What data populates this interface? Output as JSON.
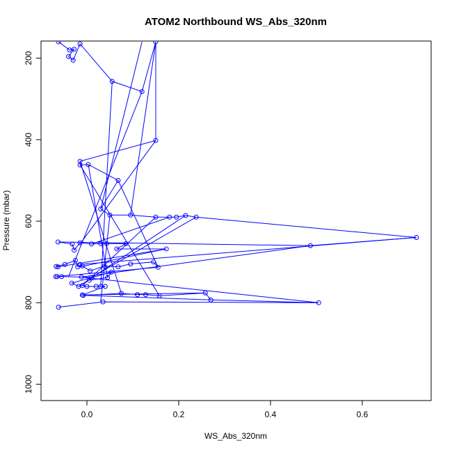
{
  "chart_data": {
    "type": "scatter",
    "title": "ATOM2 Northbound WS_Abs_320nm",
    "xlabel": "WS_Abs_320nm",
    "ylabel": "Pressure (mbar)",
    "xlim": [
      -0.1,
      0.75
    ],
    "ylim": [
      1040,
      158
    ],
    "y_reversed": true,
    "x_ticks": [
      0.0,
      0.2,
      0.4,
      0.6
    ],
    "x_tick_labels": [
      "0.0",
      "0.2",
      "0.4",
      "0.6"
    ],
    "y_ticks": [
      200,
      400,
      600,
      800,
      1000
    ],
    "y_tick_labels": [
      "200",
      "400",
      "600",
      "800",
      "1000"
    ],
    "grid": false,
    "legend": "none",
    "series_color": "#0000ff",
    "marker": "open-circle",
    "points": [
      {
        "x": -0.062,
        "y": 160
      },
      {
        "x": -0.038,
        "y": 180
      },
      {
        "x": -0.028,
        "y": 178
      },
      {
        "x": -0.04,
        "y": 196
      },
      {
        "x": -0.03,
        "y": 205
      },
      {
        "x": -0.015,
        "y": 165
      },
      {
        "x": 0.055,
        "y": 257
      },
      {
        "x": 0.12,
        "y": 282
      },
      {
        "x": 0.15,
        "y": 160
      },
      {
        "x": 0.15,
        "y": 402
      },
      {
        "x": -0.015,
        "y": 453
      },
      {
        "x": -0.015,
        "y": 462
      },
      {
        "x": 0.003,
        "y": 461
      },
      {
        "x": 0.068,
        "y": 500
      },
      {
        "x": 0.03,
        "y": 570
      },
      {
        "x": 0.05,
        "y": 585
      },
      {
        "x": 0.095,
        "y": 585
      },
      {
        "x": 0.15,
        "y": 590
      },
      {
        "x": 0.18,
        "y": 590
      },
      {
        "x": 0.195,
        "y": 590
      },
      {
        "x": 0.215,
        "y": 586
      },
      {
        "x": 0.238,
        "y": 590
      },
      {
        "x": 0.718,
        "y": 640
      },
      {
        "x": 0.487,
        "y": 660
      },
      {
        "x": -0.063,
        "y": 651
      },
      {
        "x": -0.032,
        "y": 656
      },
      {
        "x": -0.028,
        "y": 671
      },
      {
        "x": -0.015,
        "y": 653
      },
      {
        "x": 0.01,
        "y": 656
      },
      {
        "x": 0.03,
        "y": 655
      },
      {
        "x": 0.043,
        "y": 655
      },
      {
        "x": 0.085,
        "y": 655
      },
      {
        "x": 0.065,
        "y": 668
      },
      {
        "x": 0.173,
        "y": 668
      },
      {
        "x": -0.063,
        "y": 712
      },
      {
        "x": -0.067,
        "y": 711
      },
      {
        "x": -0.048,
        "y": 706
      },
      {
        "x": -0.025,
        "y": 696
      },
      {
        "x": -0.02,
        "y": 712
      },
      {
        "x": -0.01,
        "y": 710
      },
      {
        "x": -0.015,
        "y": 706
      },
      {
        "x": 0.007,
        "y": 722
      },
      {
        "x": 0.038,
        "y": 710
      },
      {
        "x": 0.068,
        "y": 712
      },
      {
        "x": 0.095,
        "y": 705
      },
      {
        "x": 0.145,
        "y": 700
      },
      {
        "x": 0.155,
        "y": 713
      },
      {
        "x": -0.068,
        "y": 736
      },
      {
        "x": -0.065,
        "y": 736
      },
      {
        "x": -0.055,
        "y": 736
      },
      {
        "x": -0.012,
        "y": 737
      },
      {
        "x": 0.01,
        "y": 738
      },
      {
        "x": 0.005,
        "y": 745
      },
      {
        "x": 0.045,
        "y": 738
      },
      {
        "x": 0.053,
        "y": 725
      },
      {
        "x": -0.033,
        "y": 752
      },
      {
        "x": -0.018,
        "y": 760
      },
      {
        "x": -0.01,
        "y": 758
      },
      {
        "x": 0.0,
        "y": 760
      },
      {
        "x": 0.02,
        "y": 760
      },
      {
        "x": 0.03,
        "y": 760
      },
      {
        "x": 0.04,
        "y": 760
      },
      {
        "x": -0.01,
        "y": 781
      },
      {
        "x": -0.008,
        "y": 782
      },
      {
        "x": 0.075,
        "y": 777
      },
      {
        "x": 0.11,
        "y": 780
      },
      {
        "x": 0.128,
        "y": 780
      },
      {
        "x": 0.158,
        "y": 783
      },
      {
        "x": 0.258,
        "y": 776
      },
      {
        "x": 0.27,
        "y": 793
      },
      {
        "x": 0.505,
        "y": 800
      },
      {
        "x": 0.035,
        "y": 798
      },
      {
        "x": -0.062,
        "y": 811
      }
    ],
    "segments": [
      [
        0.15,
        402,
        -0.015,
        656
      ],
      [
        0.12,
        282,
        -0.04,
        736
      ],
      [
        0.055,
        257,
        0.03,
        760
      ],
      [
        0.003,
        461,
        0.045,
        738
      ],
      [
        0.068,
        500,
        0.155,
        713
      ],
      [
        0.718,
        640,
        -0.015,
        706
      ],
      [
        0.487,
        660,
        -0.012,
        737
      ],
      [
        0.505,
        800,
        -0.015,
        737
      ],
      [
        0.27,
        793,
        -0.008,
        782
      ],
      [
        0.258,
        776,
        -0.01,
        781
      ],
      [
        0.238,
        590,
        0.01,
        738
      ],
      [
        0.215,
        586,
        -0.018,
        760
      ],
      [
        0.18,
        590,
        0.01,
        656
      ],
      [
        0.173,
        668,
        -0.015,
        712
      ],
      [
        0.15,
        590,
        -0.01,
        758
      ],
      [
        0.095,
        585,
        0.15,
        160
      ],
      [
        0.05,
        585,
        0.03,
        798
      ],
      [
        0.03,
        570,
        0.12,
        160
      ],
      [
        -0.015,
        453,
        0.075,
        777
      ],
      [
        -0.015,
        462,
        0.158,
        783
      ]
    ]
  }
}
